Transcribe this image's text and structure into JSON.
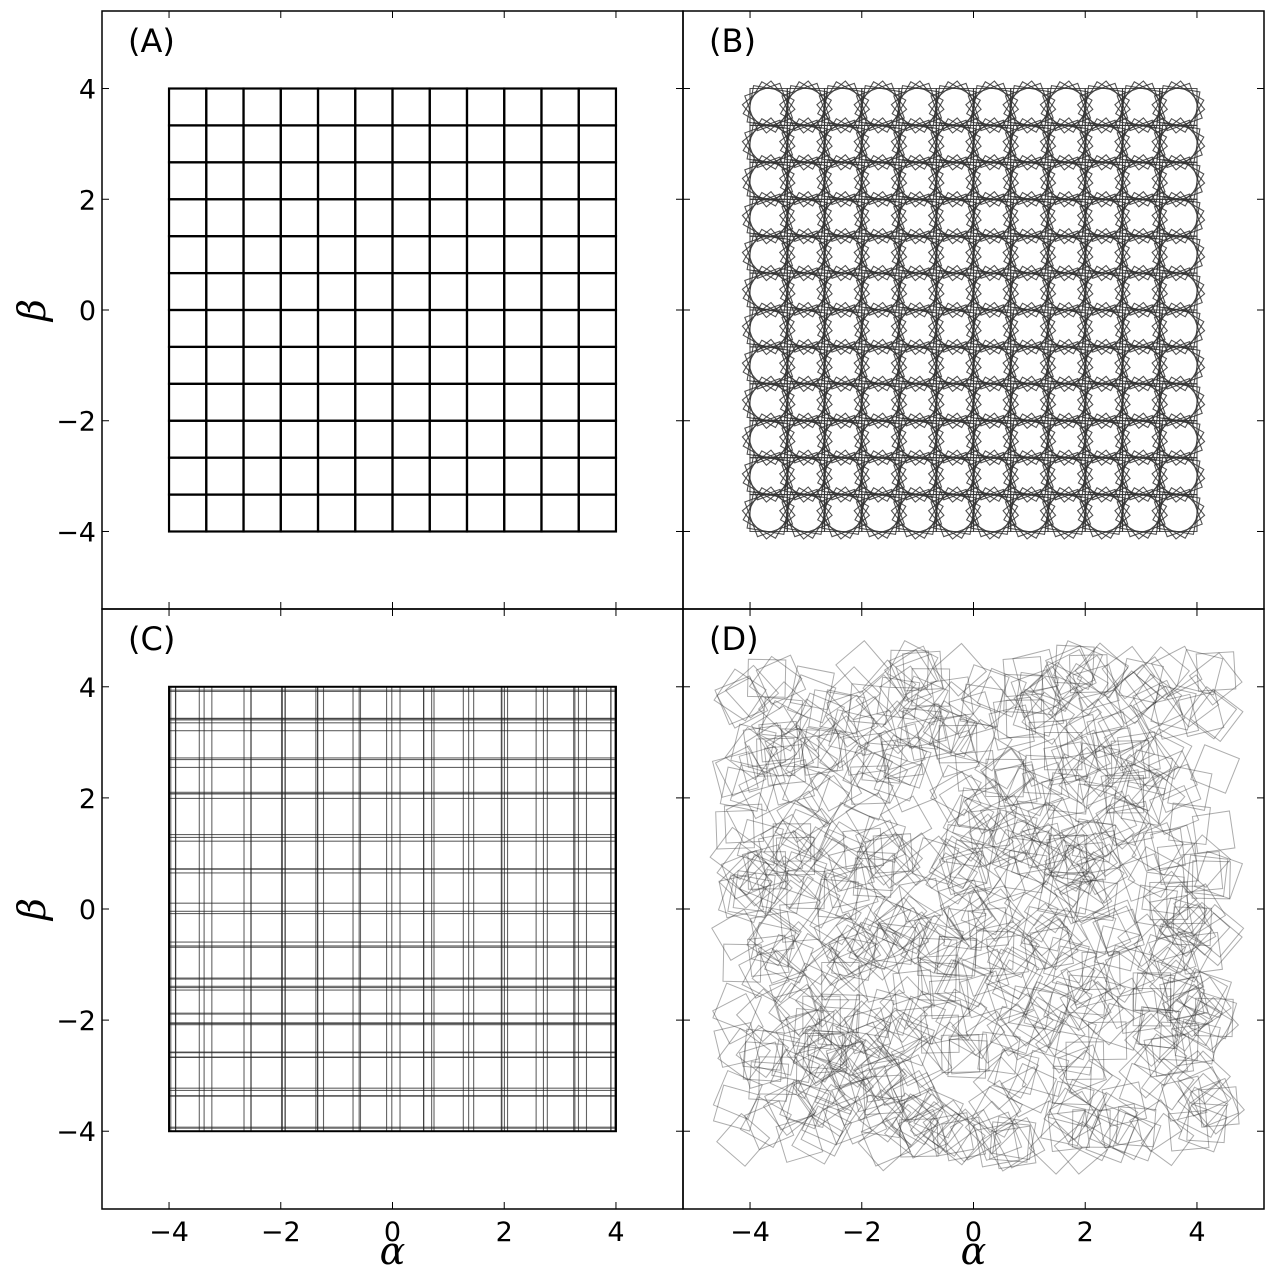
{
  "chart_data": [
    {
      "type": "line",
      "panel_label": "(A)",
      "title": "",
      "xlabel": "",
      "ylabel": "β",
      "xlim": [
        -5.2,
        5.2
      ],
      "ylim": [
        -5.4,
        5.4
      ],
      "x_ticks": [
        -4,
        -2,
        0,
        2,
        4
      ],
      "y_ticks": [
        -4,
        -2,
        0,
        2,
        4
      ],
      "x_tick_labels": [
        "",
        "",
        "",
        "",
        ""
      ],
      "y_tick_labels": [
        "−4",
        "−2",
        "0",
        "2",
        "4"
      ],
      "grid": false,
      "pattern": "aligned-squares",
      "grid_range": [
        -4,
        4
      ],
      "cells_per_side": 12,
      "line_color": "#000000"
    },
    {
      "type": "line",
      "panel_label": "(B)",
      "title": "",
      "xlabel": "",
      "ylabel": "",
      "xlim": [
        -5.2,
        5.2
      ],
      "ylim": [
        -5.4,
        5.4
      ],
      "x_ticks": [
        -4,
        -2,
        0,
        2,
        4
      ],
      "y_ticks": [
        -4,
        -2,
        0,
        2,
        4
      ],
      "x_tick_labels": [
        "",
        "",
        "",
        "",
        ""
      ],
      "y_tick_labels": [
        "",
        "",
        "",
        "",
        ""
      ],
      "grid": false,
      "pattern": "rotated-squares-per-cell",
      "grid_range": [
        -4,
        4
      ],
      "cells_per_side": 12,
      "rotations_deg": [
        0,
        20,
        40,
        60,
        80
      ],
      "line_color": "#333333"
    },
    {
      "type": "line",
      "panel_label": "(C)",
      "title": "",
      "xlabel": "α",
      "ylabel": "β",
      "xlim": [
        -5.2,
        5.2
      ],
      "ylim": [
        -5.4,
        5.4
      ],
      "x_ticks": [
        -4,
        -2,
        0,
        2,
        4
      ],
      "y_ticks": [
        -4,
        -2,
        0,
        2,
        4
      ],
      "x_tick_labels": [
        "−4",
        "−2",
        "0",
        "2",
        "4"
      ],
      "y_tick_labels": [
        "−4",
        "−2",
        "0",
        "2",
        "4"
      ],
      "grid": false,
      "pattern": "jittered-axis-aligned-lines",
      "grid_range": [
        -4,
        4
      ],
      "cells_per_side": 12,
      "line_color": "#222222"
    },
    {
      "type": "line",
      "panel_label": "(D)",
      "title": "",
      "xlabel": "α",
      "ylabel": "",
      "xlim": [
        -5.2,
        5.2
      ],
      "ylim": [
        -5.4,
        5.4
      ],
      "x_ticks": [
        -4,
        -2,
        0,
        2,
        4
      ],
      "y_ticks": [
        -4,
        -2,
        0,
        2,
        4
      ],
      "x_tick_labels": [
        "−4",
        "−2",
        "0",
        "2",
        "4"
      ],
      "y_tick_labels": [
        "",
        "",
        "",
        "",
        ""
      ],
      "grid": false,
      "pattern": "random-rotated-squares",
      "grid_range": [
        -4.3,
        4.4
      ],
      "square_side": 0.67,
      "square_count": 700,
      "line_color": "#333333"
    }
  ]
}
